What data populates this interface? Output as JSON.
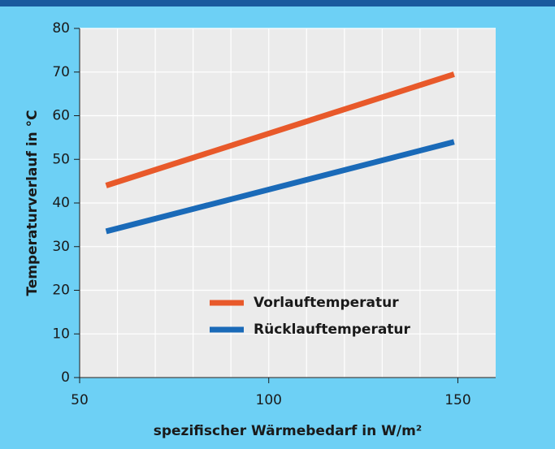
{
  "chart_data": {
    "type": "line",
    "xlabel": "spezifischer Wärmebedarf in W/m²",
    "ylabel": "Temperaturverlauf in °C",
    "x": [
      57,
      149
    ],
    "series": [
      {
        "name": "Vorlauftemperatur",
        "color": "#e8592a",
        "values": [
          44,
          69.5
        ]
      },
      {
        "name": "Rücklauftemperatur",
        "color": "#1a6ab8",
        "values": [
          33.5,
          54
        ]
      }
    ],
    "xlim": [
      50,
      160
    ],
    "xticks": [
      50,
      100,
      150
    ],
    "xgrid": [
      60,
      70,
      80,
      90,
      100,
      110,
      120,
      130,
      140,
      150
    ],
    "ylim": [
      0,
      80
    ],
    "yticks": [
      0,
      10,
      20,
      30,
      40,
      50,
      60,
      70,
      80
    ],
    "grid": true,
    "legend": "lower center"
  }
}
